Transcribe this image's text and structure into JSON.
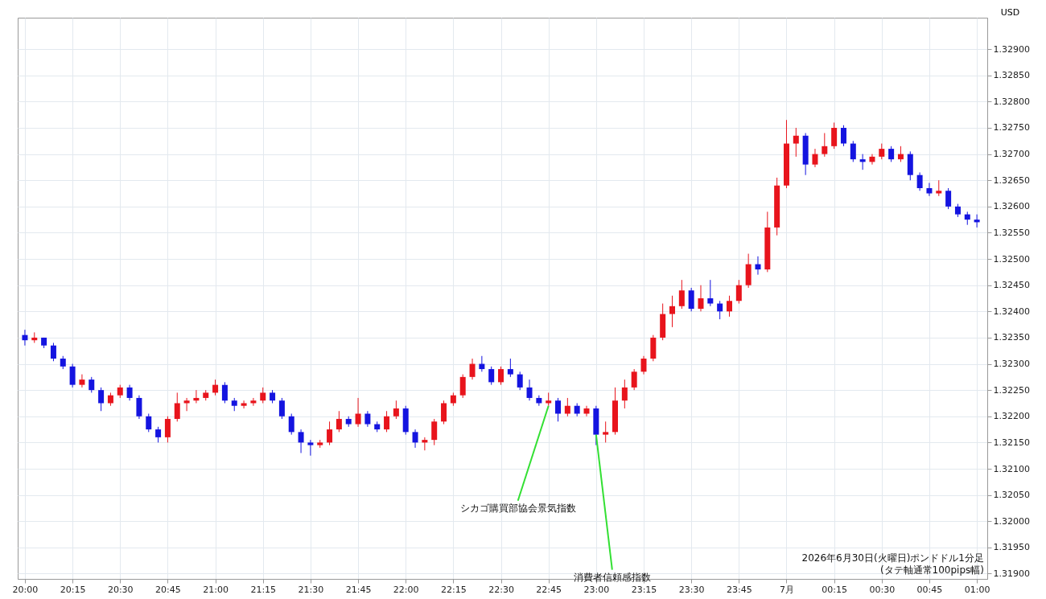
{
  "chart_data": {
    "type": "candlestick",
    "ylabel": "USD",
    "grid": true,
    "xlim": [
      "2026-06-30T19:59",
      "2026-07-01T01:02"
    ],
    "ylim": [
      1.3189,
      1.3296
    ],
    "xticks": [
      {
        "value": "2026-06-30T20:00",
        "label": "20:00"
      },
      {
        "value": "2026-06-30T20:15",
        "label": "20:15"
      },
      {
        "value": "2026-06-30T20:30",
        "label": "20:30"
      },
      {
        "value": "2026-06-30T20:45",
        "label": "20:45"
      },
      {
        "value": "2026-06-30T21:00",
        "label": "21:00"
      },
      {
        "value": "2026-06-30T21:15",
        "label": "21:15"
      },
      {
        "value": "2026-06-30T21:30",
        "label": "21:30"
      },
      {
        "value": "2026-06-30T21:45",
        "label": "21:45"
      },
      {
        "value": "2026-06-30T22:00",
        "label": "22:00"
      },
      {
        "value": "2026-06-30T22:15",
        "label": "22:15"
      },
      {
        "value": "2026-06-30T22:30",
        "label": "22:30"
      },
      {
        "value": "2026-06-30T22:45",
        "label": "22:45"
      },
      {
        "value": "2026-06-30T23:00",
        "label": "23:00"
      },
      {
        "value": "2026-06-30T23:15",
        "label": "23:15"
      },
      {
        "value": "2026-06-30T23:30",
        "label": "23:30"
      },
      {
        "value": "2026-06-30T23:45",
        "label": "23:45"
      },
      {
        "value": "2026-07-01T00:00",
        "label": "7月"
      },
      {
        "value": "2026-07-01T00:15",
        "label": "00:15"
      },
      {
        "value": "2026-07-01T00:30",
        "label": "00:30"
      },
      {
        "value": "2026-07-01T00:45",
        "label": "00:45"
      },
      {
        "value": "2026-07-01T01:00",
        "label": "01:00"
      }
    ],
    "yticks": [
      {
        "value": 1.319,
        "label": "1.31900"
      },
      {
        "value": 1.3195,
        "label": "1.31950"
      },
      {
        "value": 1.32,
        "label": "1.32000"
      },
      {
        "value": 1.3205,
        "label": "1.32050"
      },
      {
        "value": 1.321,
        "label": "1.32100"
      },
      {
        "value": 1.3215,
        "label": "1.32150"
      },
      {
        "value": 1.322,
        "label": "1.32200"
      },
      {
        "value": 1.3225,
        "label": "1.32250"
      },
      {
        "value": 1.323,
        "label": "1.32300"
      },
      {
        "value": 1.3235,
        "label": "1.32350"
      },
      {
        "value": 1.324,
        "label": "1.32400"
      },
      {
        "value": 1.3245,
        "label": "1.32450"
      },
      {
        "value": 1.325,
        "label": "1.32500"
      },
      {
        "value": 1.3255,
        "label": "1.32550"
      },
      {
        "value": 1.326,
        "label": "1.32600"
      },
      {
        "value": 1.3265,
        "label": "1.32650"
      },
      {
        "value": 1.327,
        "label": "1.32700"
      },
      {
        "value": 1.3275,
        "label": "1.32750"
      },
      {
        "value": 1.328,
        "label": "1.32800"
      },
      {
        "value": 1.3285,
        "label": "1.32850"
      },
      {
        "value": 1.329,
        "label": "1.32900"
      }
    ],
    "x": [
      "2026-06-30T20:00",
      "2026-06-30T20:03",
      "2026-06-30T20:06",
      "2026-06-30T20:09",
      "2026-06-30T20:12",
      "2026-06-30T20:15",
      "2026-06-30T20:18",
      "2026-06-30T20:21",
      "2026-06-30T20:24",
      "2026-06-30T20:27",
      "2026-06-30T20:30",
      "2026-06-30T20:33",
      "2026-06-30T20:36",
      "2026-06-30T20:39",
      "2026-06-30T20:42",
      "2026-06-30T20:45",
      "2026-06-30T20:48",
      "2026-06-30T20:51",
      "2026-06-30T20:54",
      "2026-06-30T20:57",
      "2026-06-30T21:00",
      "2026-06-30T21:03",
      "2026-06-30T21:06",
      "2026-06-30T21:09",
      "2026-06-30T21:12",
      "2026-06-30T21:15",
      "2026-06-30T21:18",
      "2026-06-30T21:21",
      "2026-06-30T21:24",
      "2026-06-30T21:27",
      "2026-06-30T21:30",
      "2026-06-30T21:33",
      "2026-06-30T21:36",
      "2026-06-30T21:39",
      "2026-06-30T21:42",
      "2026-06-30T21:45",
      "2026-06-30T21:48",
      "2026-06-30T21:51",
      "2026-06-30T21:54",
      "2026-06-30T21:57",
      "2026-06-30T22:00",
      "2026-06-30T22:03",
      "2026-06-30T22:06",
      "2026-06-30T22:09",
      "2026-06-30T22:12",
      "2026-06-30T22:15",
      "2026-06-30T22:18",
      "2026-06-30T22:21",
      "2026-06-30T22:24",
      "2026-06-30T22:27",
      "2026-06-30T22:30",
      "2026-06-30T22:33",
      "2026-06-30T22:36",
      "2026-06-30T22:39",
      "2026-06-30T22:42",
      "2026-06-30T22:45",
      "2026-06-30T22:48",
      "2026-06-30T22:51",
      "2026-06-30T22:54",
      "2026-06-30T22:57",
      "2026-06-30T23:00",
      "2026-06-30T23:03",
      "2026-06-30T23:06",
      "2026-06-30T23:09",
      "2026-06-30T23:12",
      "2026-06-30T23:15",
      "2026-06-30T23:18",
      "2026-06-30T23:21",
      "2026-06-30T23:24",
      "2026-06-30T23:27",
      "2026-06-30T23:30",
      "2026-06-30T23:33",
      "2026-06-30T23:36",
      "2026-06-30T23:39",
      "2026-06-30T23:42",
      "2026-06-30T23:45",
      "2026-06-30T23:48",
      "2026-06-30T23:51",
      "2026-06-30T23:54",
      "2026-06-30T23:57",
      "2026-07-01T00:00",
      "2026-07-01T00:03",
      "2026-07-01T00:06",
      "2026-07-01T00:09",
      "2026-07-01T00:12",
      "2026-07-01T00:15",
      "2026-07-01T00:18",
      "2026-07-01T00:21",
      "2026-07-01T00:24",
      "2026-07-01T00:27",
      "2026-07-01T00:30",
      "2026-07-01T00:33",
      "2026-07-01T00:36",
      "2026-07-01T00:39",
      "2026-07-01T00:42",
      "2026-07-01T00:45",
      "2026-07-01T00:48",
      "2026-07-01T00:51",
      "2026-07-01T00:54",
      "2026-07-01T00:57",
      "2026-07-01T01:00"
    ],
    "ohlc": [
      [
        1.32355,
        1.32365,
        1.32335,
        1.32345
      ],
      [
        1.32345,
        1.3236,
        1.3234,
        1.3235
      ],
      [
        1.3235,
        1.3235,
        1.3233,
        1.32335
      ],
      [
        1.32335,
        1.3234,
        1.32305,
        1.3231
      ],
      [
        1.3231,
        1.32315,
        1.3229,
        1.32295
      ],
      [
        1.32295,
        1.323,
        1.32255,
        1.3226
      ],
      [
        1.3226,
        1.3228,
        1.32255,
        1.3227
      ],
      [
        1.3227,
        1.32275,
        1.32245,
        1.3225
      ],
      [
        1.3225,
        1.32255,
        1.3221,
        1.32225
      ],
      [
        1.32225,
        1.32245,
        1.3222,
        1.3224
      ],
      [
        1.3224,
        1.3226,
        1.32235,
        1.32255
      ],
      [
        1.32255,
        1.3226,
        1.3223,
        1.32235
      ],
      [
        1.32235,
        1.3224,
        1.32195,
        1.322
      ],
      [
        1.322,
        1.32205,
        1.3217,
        1.32175
      ],
      [
        1.32175,
        1.3218,
        1.3215,
        1.3216
      ],
      [
        1.3216,
        1.322,
        1.3215,
        1.32195
      ],
      [
        1.32195,
        1.32245,
        1.3219,
        1.32225
      ],
      [
        1.32225,
        1.32235,
        1.3221,
        1.3223
      ],
      [
        1.3223,
        1.3225,
        1.32225,
        1.32235
      ],
      [
        1.32235,
        1.3225,
        1.3223,
        1.32245
      ],
      [
        1.32245,
        1.3227,
        1.3224,
        1.3226
      ],
      [
        1.3226,
        1.32265,
        1.32225,
        1.3223
      ],
      [
        1.3223,
        1.32235,
        1.3221,
        1.3222
      ],
      [
        1.3222,
        1.3223,
        1.32215,
        1.32225
      ],
      [
        1.32225,
        1.32235,
        1.3222,
        1.3223
      ],
      [
        1.3223,
        1.32255,
        1.32225,
        1.32245
      ],
      [
        1.32245,
        1.3225,
        1.32225,
        1.3223
      ],
      [
        1.3223,
        1.32235,
        1.32195,
        1.322
      ],
      [
        1.322,
        1.32205,
        1.32165,
        1.3217
      ],
      [
        1.3217,
        1.32175,
        1.3213,
        1.3215
      ],
      [
        1.3215,
        1.32155,
        1.32125,
        1.32145
      ],
      [
        1.32145,
        1.32155,
        1.3214,
        1.3215
      ],
      [
        1.3215,
        1.3219,
        1.32145,
        1.32175
      ],
      [
        1.32175,
        1.3221,
        1.3217,
        1.32195
      ],
      [
        1.32195,
        1.322,
        1.3218,
        1.32185
      ],
      [
        1.32185,
        1.32235,
        1.3218,
        1.32205
      ],
      [
        1.32205,
        1.3221,
        1.3218,
        1.32185
      ],
      [
        1.32185,
        1.3219,
        1.3217,
        1.32175
      ],
      [
        1.32175,
        1.3221,
        1.3217,
        1.322
      ],
      [
        1.322,
        1.3223,
        1.32195,
        1.32215
      ],
      [
        1.32215,
        1.3222,
        1.32165,
        1.3217
      ],
      [
        1.3217,
        1.32175,
        1.3214,
        1.3215
      ],
      [
        1.3215,
        1.3216,
        1.32135,
        1.32155
      ],
      [
        1.32155,
        1.32195,
        1.32145,
        1.3219
      ],
      [
        1.3219,
        1.3223,
        1.32185,
        1.32225
      ],
      [
        1.32225,
        1.32245,
        1.3222,
        1.3224
      ],
      [
        1.3224,
        1.3228,
        1.32235,
        1.32275
      ],
      [
        1.32275,
        1.3231,
        1.3227,
        1.323
      ],
      [
        1.323,
        1.32315,
        1.32285,
        1.3229
      ],
      [
        1.3229,
        1.32295,
        1.3226,
        1.32265
      ],
      [
        1.32265,
        1.32295,
        1.3226,
        1.3229
      ],
      [
        1.3229,
        1.3231,
        1.32275,
        1.3228
      ],
      [
        1.3228,
        1.32285,
        1.3225,
        1.32255
      ],
      [
        1.32255,
        1.3227,
        1.3223,
        1.32235
      ],
      [
        1.32235,
        1.3224,
        1.3222,
        1.32225
      ],
      [
        1.32225,
        1.32245,
        1.3222,
        1.3223
      ],
      [
        1.3223,
        1.32235,
        1.3219,
        1.32205
      ],
      [
        1.32205,
        1.32235,
        1.322,
        1.3222
      ],
      [
        1.3222,
        1.32225,
        1.322,
        1.32205
      ],
      [
        1.32205,
        1.3222,
        1.322,
        1.32215
      ],
      [
        1.32215,
        1.3222,
        1.32145,
        1.32165
      ],
      [
        1.32165,
        1.3219,
        1.3215,
        1.3217
      ],
      [
        1.3217,
        1.32255,
        1.32165,
        1.3223
      ],
      [
        1.3223,
        1.3227,
        1.32215,
        1.32255
      ],
      [
        1.32255,
        1.3229,
        1.3225,
        1.32285
      ],
      [
        1.32285,
        1.32315,
        1.3228,
        1.3231
      ],
      [
        1.3231,
        1.32355,
        1.32305,
        1.3235
      ],
      [
        1.3235,
        1.32415,
        1.32345,
        1.32395
      ],
      [
        1.32395,
        1.3243,
        1.3237,
        1.3241
      ],
      [
        1.3241,
        1.3246,
        1.32405,
        1.3244
      ],
      [
        1.3244,
        1.32445,
        1.324,
        1.32405
      ],
      [
        1.32405,
        1.3245,
        1.324,
        1.32425
      ],
      [
        1.32425,
        1.3246,
        1.3241,
        1.32415
      ],
      [
        1.32415,
        1.3242,
        1.32385,
        1.324
      ],
      [
        1.324,
        1.3243,
        1.3239,
        1.3242
      ],
      [
        1.3242,
        1.3246,
        1.32415,
        1.3245
      ],
      [
        1.3245,
        1.3251,
        1.32445,
        1.3249
      ],
      [
        1.3249,
        1.32505,
        1.3247,
        1.3248
      ],
      [
        1.3248,
        1.3259,
        1.32475,
        1.3256
      ],
      [
        1.3256,
        1.32655,
        1.32545,
        1.3264
      ],
      [
        1.3264,
        1.32765,
        1.32635,
        1.3272
      ],
      [
        1.3272,
        1.3275,
        1.32695,
        1.32735
      ],
      [
        1.32735,
        1.3274,
        1.3266,
        1.3268
      ],
      [
        1.3268,
        1.3271,
        1.32675,
        1.327
      ],
      [
        1.327,
        1.3274,
        1.32695,
        1.32715
      ],
      [
        1.32715,
        1.3276,
        1.3271,
        1.3275
      ],
      [
        1.3275,
        1.32755,
        1.32715,
        1.3272
      ],
      [
        1.3272,
        1.32725,
        1.32685,
        1.3269
      ],
      [
        1.3269,
        1.327,
        1.3267,
        1.32685
      ],
      [
        1.32685,
        1.327,
        1.3268,
        1.32695
      ],
      [
        1.32695,
        1.3272,
        1.3269,
        1.3271
      ],
      [
        1.3271,
        1.32715,
        1.32685,
        1.3269
      ],
      [
        1.3269,
        1.32715,
        1.32685,
        1.327
      ],
      [
        1.327,
        1.32705,
        1.3265,
        1.3266
      ],
      [
        1.3266,
        1.32665,
        1.3263,
        1.32635
      ],
      [
        1.32635,
        1.32645,
        1.3262,
        1.32625
      ],
      [
        1.32625,
        1.3265,
        1.3262,
        1.3263
      ],
      [
        1.3263,
        1.32635,
        1.32595,
        1.326
      ],
      [
        1.326,
        1.32605,
        1.3258,
        1.32585
      ],
      [
        1.32585,
        1.3259,
        1.32565,
        1.32575
      ],
      [
        1.32575,
        1.32585,
        1.3256,
        1.3257
      ]
    ],
    "colors": [
      "#1414e0",
      "#e8141c",
      "#1414e0",
      "#1414e0",
      "#1414e0",
      "#1414e0",
      "#e8141c",
      "#1414e0",
      "#1414e0",
      "#e8141c",
      "#e8141c",
      "#1414e0",
      "#1414e0",
      "#1414e0",
      "#1414e0",
      "#e8141c",
      "#e8141c",
      "#e8141c",
      "#e8141c",
      "#e8141c",
      "#e8141c",
      "#1414e0",
      "#1414e0",
      "#e8141c",
      "#e8141c",
      "#e8141c",
      "#1414e0",
      "#1414e0",
      "#1414e0",
      "#1414e0",
      "#1414e0",
      "#e8141c",
      "#e8141c",
      "#e8141c",
      "#1414e0",
      "#e8141c",
      "#1414e0",
      "#1414e0",
      "#e8141c",
      "#e8141c",
      "#1414e0",
      "#1414e0",
      "#e8141c",
      "#e8141c",
      "#e8141c",
      "#e8141c",
      "#e8141c",
      "#e8141c",
      "#1414e0",
      "#1414e0",
      "#e8141c",
      "#1414e0",
      "#1414e0",
      "#1414e0",
      "#1414e0",
      "#e8141c",
      "#1414e0",
      "#e8141c",
      "#1414e0",
      "#e8141c",
      "#1414e0",
      "#e8141c",
      "#e8141c",
      "#e8141c",
      "#e8141c",
      "#e8141c",
      "#e8141c",
      "#e8141c",
      "#e8141c",
      "#e8141c",
      "#1414e0",
      "#e8141c",
      "#1414e0",
      "#1414e0",
      "#e8141c",
      "#e8141c",
      "#e8141c",
      "#1414e0",
      "#e8141c",
      "#e8141c",
      "#e8141c",
      "#e8141c",
      "#1414e0",
      "#e8141c",
      "#e8141c",
      "#e8141c",
      "#1414e0",
      "#1414e0",
      "#1414e0",
      "#e8141c",
      "#e8141c",
      "#1414e0",
      "#e8141c",
      "#1414e0",
      "#1414e0",
      "#1414e0",
      "#e8141c",
      "#1414e0",
      "#1414e0",
      "#1414e0",
      "#1414e0"
    ],
    "annotations": [
      {
        "text": "シカゴ購買部協会景気指数",
        "x": "2026-06-30T22:45",
        "y": 1.3222
      },
      {
        "text": "消費者信頼感指数",
        "x": "2026-06-30T23:00",
        "y": 1.32165
      },
      "2026年6月30日(火曜日)ポンドドル1分足",
      "(タテ軸通常100pips幅)"
    ]
  }
}
